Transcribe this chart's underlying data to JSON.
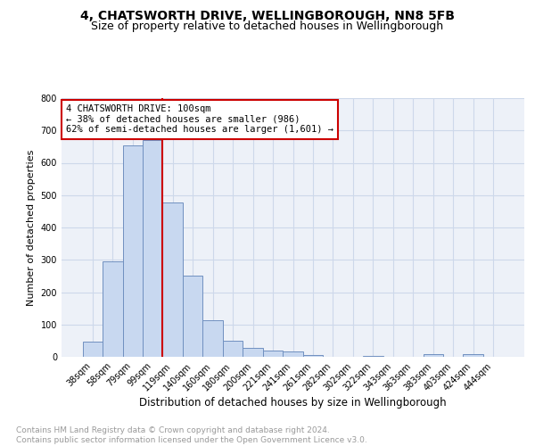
{
  "title1": "4, CHATSWORTH DRIVE, WELLINGBOROUGH, NN8 5FB",
  "title2": "Size of property relative to detached houses in Wellingborough",
  "xlabel": "Distribution of detached houses by size in Wellingborough",
  "ylabel": "Number of detached properties",
  "categories": [
    "38sqm",
    "58sqm",
    "79sqm",
    "99sqm",
    "119sqm",
    "140sqm",
    "160sqm",
    "180sqm",
    "200sqm",
    "221sqm",
    "241sqm",
    "261sqm",
    "282sqm",
    "302sqm",
    "322sqm",
    "343sqm",
    "363sqm",
    "383sqm",
    "403sqm",
    "424sqm",
    "444sqm"
  ],
  "values": [
    47,
    295,
    653,
    670,
    478,
    252,
    112,
    50,
    27,
    18,
    16,
    5,
    1,
    0,
    4,
    0,
    0,
    9,
    0,
    8,
    0
  ],
  "bar_color": "#c8d8f0",
  "bar_edge_color": "#7090c0",
  "annotation_text_line1": "4 CHATSWORTH DRIVE: 100sqm",
  "annotation_text_line2": "← 38% of detached houses are smaller (986)",
  "annotation_text_line3": "62% of semi-detached houses are larger (1,601) →",
  "annotation_box_color": "#ffffff",
  "annotation_box_edge_color": "#cc0000",
  "vline_color": "#cc0000",
  "grid_color": "#cdd8ea",
  "background_color": "#edf1f8",
  "ylim": [
    0,
    800
  ],
  "yticks": [
    0,
    100,
    200,
    300,
    400,
    500,
    600,
    700,
    800
  ],
  "footer_text": "Contains HM Land Registry data © Crown copyright and database right 2024.\nContains public sector information licensed under the Open Government Licence v3.0.",
  "title1_fontsize": 10,
  "title2_fontsize": 9,
  "xlabel_fontsize": 8.5,
  "ylabel_fontsize": 8,
  "tick_fontsize": 7,
  "annotation_fontsize": 7.5,
  "footer_fontsize": 6.5
}
